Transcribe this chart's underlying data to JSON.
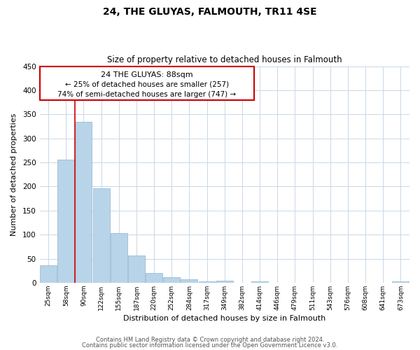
{
  "title": "24, THE GLUYAS, FALMOUTH, TR11 4SE",
  "subtitle": "Size of property relative to detached houses in Falmouth",
  "xlabel": "Distribution of detached houses by size in Falmouth",
  "ylabel": "Number of detached properties",
  "bar_color": "#b8d4e8",
  "bar_edge_color": "#9bbcd8",
  "vline_color": "#cc0000",
  "categories": [
    "25sqm",
    "58sqm",
    "90sqm",
    "122sqm",
    "155sqm",
    "187sqm",
    "220sqm",
    "252sqm",
    "284sqm",
    "317sqm",
    "349sqm",
    "382sqm",
    "414sqm",
    "446sqm",
    "479sqm",
    "511sqm",
    "543sqm",
    "576sqm",
    "608sqm",
    "641sqm",
    "673sqm"
  ],
  "values": [
    36,
    256,
    335,
    196,
    103,
    57,
    20,
    11,
    7,
    3,
    4,
    0,
    3,
    0,
    0,
    0,
    0,
    0,
    0,
    0,
    3
  ],
  "ylim": [
    0,
    450
  ],
  "yticks": [
    0,
    50,
    100,
    150,
    200,
    250,
    300,
    350,
    400,
    450
  ],
  "vline_position": 1.5,
  "annotation_title": "24 THE GLUYAS: 88sqm",
  "annotation_line1": "← 25% of detached houses are smaller (257)",
  "annotation_line2": "74% of semi-detached houses are larger (747) →",
  "footer_line1": "Contains HM Land Registry data © Crown copyright and database right 2024.",
  "footer_line2": "Contains public sector information licensed under the Open Government Licence v3.0.",
  "background_color": "#ffffff",
  "grid_color": "#c8d8e8"
}
